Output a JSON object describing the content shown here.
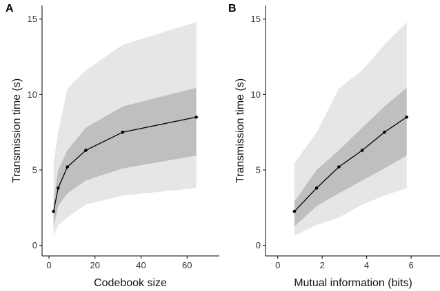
{
  "figure": {
    "panels": [
      "A",
      "B"
    ]
  },
  "colors": {
    "band_outer": "#e6e6e6",
    "band_inner": "#bfbfbf",
    "line": "#000000",
    "axis": "#000000"
  },
  "chart_data": [
    {
      "type": "line",
      "panel": "A",
      "xlabel": "Codebook size",
      "ylabel": "Transmission time (s)",
      "xlim": [
        -3,
        74
      ],
      "ylim": [
        -0.7,
        15.9
      ],
      "xticks": [
        0,
        20,
        40,
        60
      ],
      "yticks": [
        0,
        5,
        10,
        15
      ],
      "grid": false,
      "series": [
        {
          "x": [
            2,
            4,
            8,
            16,
            32,
            64
          ],
          "y": [
            2.25,
            3.8,
            5.2,
            6.3,
            7.5,
            8.5
          ],
          "inner_band_low": [
            1.25,
            2.6,
            3.45,
            4.3,
            5.1,
            5.95
          ],
          "inner_band_high": [
            2.9,
            5.0,
            6.3,
            7.8,
            9.2,
            10.45
          ],
          "outer_band_low": [
            0.65,
            1.35,
            1.85,
            2.7,
            3.3,
            3.8
          ],
          "outer_band_high": [
            5.45,
            7.5,
            10.4,
            11.6,
            13.3,
            14.8
          ]
        }
      ]
    },
    {
      "type": "line",
      "panel": "B",
      "xlabel": "Mutual information (bits)",
      "ylabel": "Transmission time (s)",
      "xlim": [
        -0.55,
        7.3
      ],
      "ylim": [
        -0.7,
        15.9
      ],
      "xticks": [
        0,
        2,
        4,
        6
      ],
      "yticks": [
        0,
        5,
        10,
        15
      ],
      "grid": false,
      "series": [
        {
          "x": [
            0.75,
            1.75,
            2.75,
            3.8,
            4.8,
            5.8
          ],
          "y": [
            2.25,
            3.8,
            5.2,
            6.3,
            7.5,
            8.5
          ],
          "inner_band_low": [
            1.25,
            2.6,
            3.45,
            4.3,
            5.1,
            5.95
          ],
          "inner_band_high": [
            2.9,
            5.0,
            6.3,
            7.8,
            9.2,
            10.45
          ],
          "outer_band_low": [
            0.65,
            1.35,
            1.85,
            2.7,
            3.3,
            3.8
          ],
          "outer_band_high": [
            5.45,
            7.5,
            10.4,
            11.6,
            13.3,
            14.8
          ]
        }
      ]
    }
  ]
}
